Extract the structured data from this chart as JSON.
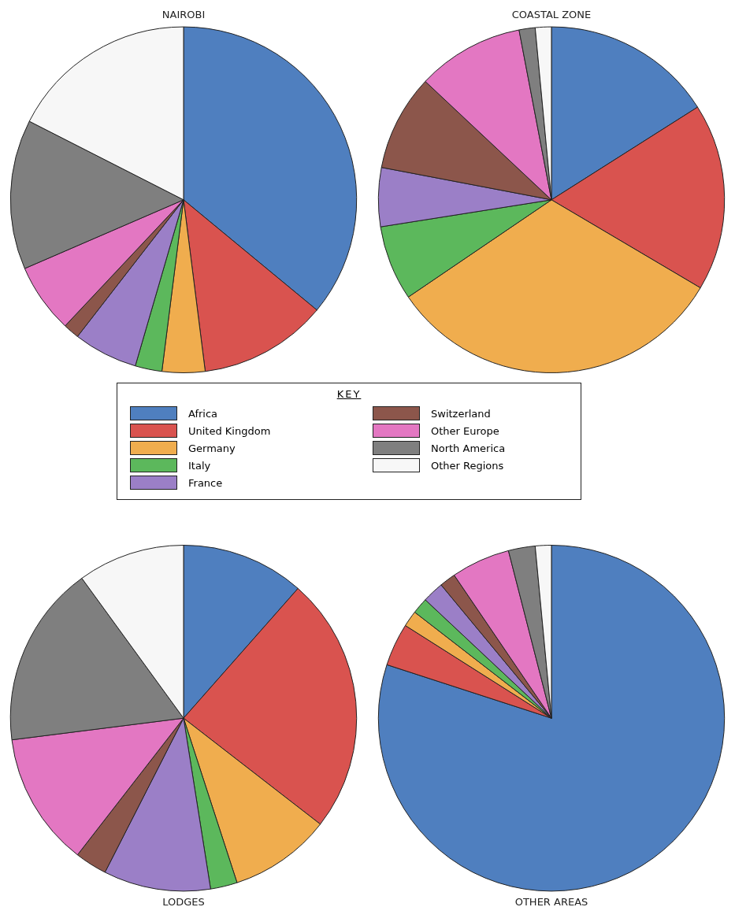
{
  "chart_data": [
    {
      "type": "pie",
      "title": "NAIROBI",
      "legend": "bottom",
      "legend_title": "KEY",
      "categories": [
        "Africa",
        "United Kingdom",
        "Germany",
        "Italy",
        "France",
        "Switzerland",
        "Other Europe",
        "North America",
        "Other Regions"
      ],
      "values": [
        36,
        12,
        4,
        2.5,
        6,
        1.5,
        6.5,
        14,
        17.5
      ],
      "colors": [
        "#4f7fbf",
        "#d9534f",
        "#f0ad4e",
        "#5cb85c",
        "#9b7fc7",
        "#8c564b",
        "#e377c2",
        "#7f7f7f",
        "#f7f7f7"
      ]
    },
    {
      "type": "pie",
      "title": "COASTAL ZONE",
      "categories": [
        null,
        null,
        null,
        null,
        null,
        null,
        null,
        null,
        null
      ],
      "values": [
        16,
        17.5,
        32,
        7,
        5.5,
        9,
        10,
        1.5,
        1.5
      ],
      "colors": [
        "#4f7fbf",
        "#d9534f",
        "#f0ad4e",
        "#5cb85c",
        "#9b7fc7",
        "#8c564b",
        "#e377c2",
        "#7f7f7f",
        "#f7f7f7"
      ]
    },
    {
      "type": "pie",
      "title": "LODGES",
      "categories": [
        null,
        null,
        null,
        null,
        null,
        null,
        null,
        null,
        null
      ],
      "values": [
        11.5,
        24,
        9.5,
        2.5,
        10,
        3,
        12.5,
        17,
        10
      ],
      "colors": [
        "#4f7fbf",
        "#d9534f",
        "#f0ad4e",
        "#5cb85c",
        "#9b7fc7",
        "#8c564b",
        "#e377c2",
        "#7f7f7f",
        "#f7f7f7"
      ]
    },
    {
      "type": "pie",
      "title": "OTHER AREAS",
      "categories": [
        null,
        null,
        null,
        null,
        null,
        null,
        null,
        null,
        null
      ],
      "values": [
        80,
        4,
        1.5,
        1.5,
        2,
        1.5,
        5.5,
        2.5,
        1.5
      ],
      "colors": [
        "#4f7fbf",
        "#d9534f",
        "#f0ad4e",
        "#5cb85c",
        "#9b7fc7",
        "#8c564b",
        "#e377c2",
        "#7f7f7f",
        "#f7f7f7"
      ]
    }
  ]
}
